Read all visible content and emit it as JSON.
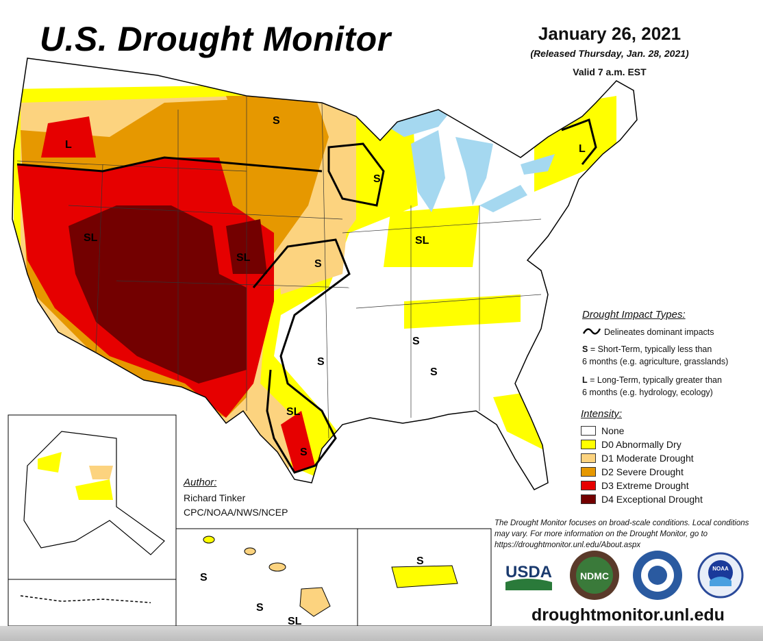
{
  "title": "U.S. Drought Monitor",
  "date": "January 26, 2021",
  "released": "(Released Thursday, Jan. 28, 2021)",
  "valid": "Valid 7 a.m. EST",
  "impact": {
    "heading": "Drought Impact Types:",
    "delineates": "Delineates dominant impacts",
    "s_key": "S",
    "s_line1": "= Short-Term, typically less than",
    "s_line2": "6 months (e.g. agriculture, grasslands)",
    "l_key": "L",
    "l_line1": "= Long-Term, typically greater than",
    "l_line2": "6 months (e.g. hydrology, ecology)"
  },
  "intensity": {
    "heading": "Intensity:",
    "levels": [
      {
        "label": "None",
        "color": "#ffffff"
      },
      {
        "label": "D0 Abnormally Dry",
        "color": "#ffff00"
      },
      {
        "label": "D1 Moderate Drought",
        "color": "#fcd37f"
      },
      {
        "label": "D2 Severe Drought",
        "color": "#e69800"
      },
      {
        "label": "D3 Extreme Drought",
        "color": "#e60000"
      },
      {
        "label": "D4 Exceptional Drought",
        "color": "#730000"
      }
    ]
  },
  "author": {
    "heading": "Author:",
    "name": "Richard Tinker",
    "org": "CPC/NOAA/NWS/NCEP"
  },
  "disclaimer": "The Drought Monitor focuses on broad-scale conditions. Local conditions may vary. For more information on the Drought Monitor, go to https://droughtmonitor.unl.edu/About.aspx",
  "url": "droughtmonitor.unl.edu",
  "logos": {
    "usda": "USDA",
    "ndmc": "NDMC",
    "noaa": "NOAA"
  },
  "map_labels": [
    "S",
    "L",
    "SL",
    "SL",
    "S",
    "S",
    "SL",
    "L",
    "S",
    "S",
    "S",
    "SL",
    "S",
    "S",
    "S",
    "SL",
    "S"
  ]
}
